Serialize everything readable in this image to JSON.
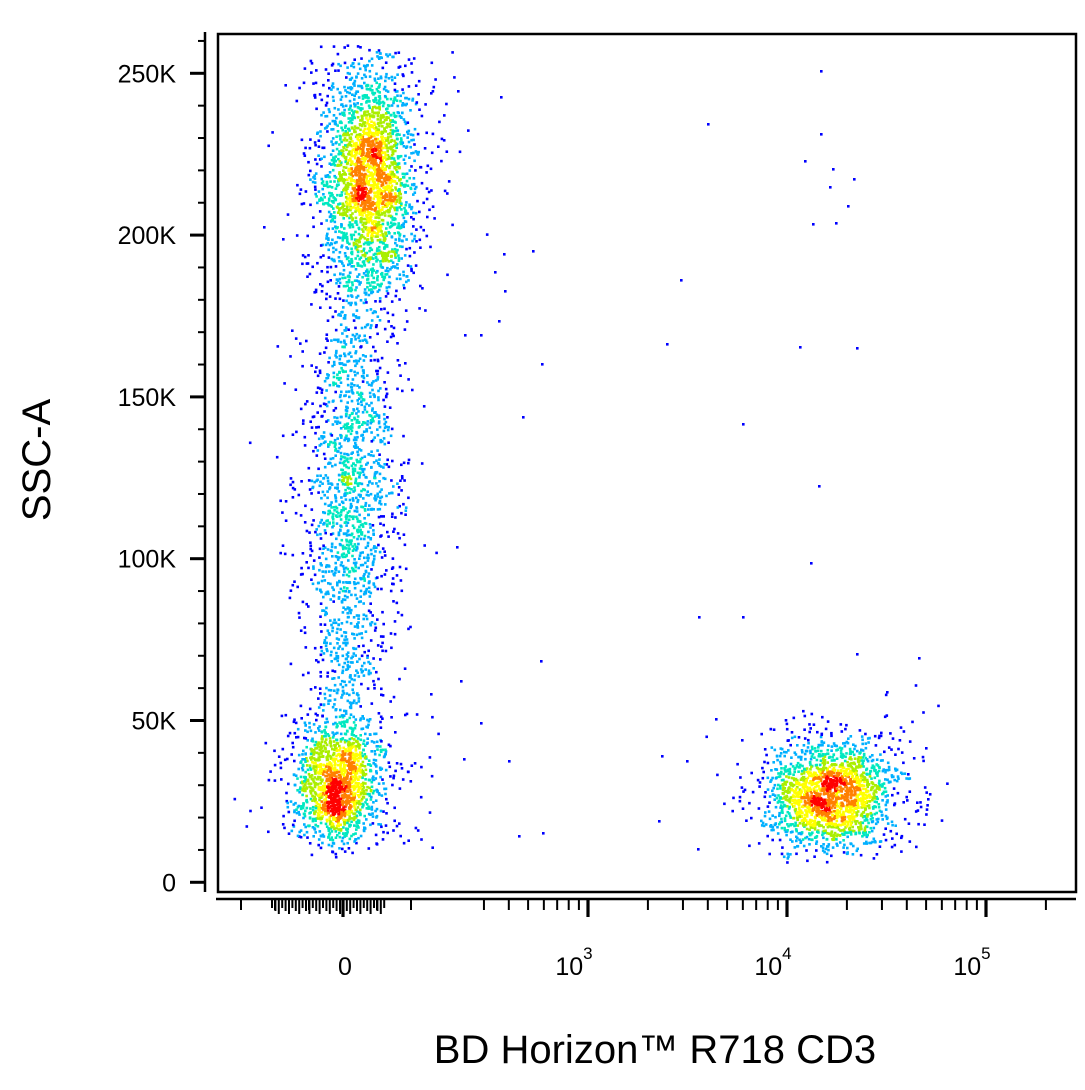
{
  "chart_data": {
    "type": "scatter",
    "subtype": "flow-cytometry density dot plot",
    "xlabel": "BD Horizon™ R718 CD3",
    "ylabel": "SSC-A",
    "x_scale": "biexponential",
    "y_scale": "linear",
    "xlim": [
      -600,
      200000
    ],
    "ylim": [
      -3000,
      262144
    ],
    "grid": false,
    "legend": "none",
    "colormap": [
      "#0000ff",
      "#00b0ff",
      "#00e8c0",
      "#aaee00",
      "#ffff00",
      "#ff8000",
      "#ff0000"
    ],
    "y_ticks": [
      {
        "value": 250000,
        "label": "250K"
      },
      {
        "value": 200000,
        "label": "200K"
      },
      {
        "value": 150000,
        "label": "150K"
      },
      {
        "value": 100000,
        "label": "100K"
      },
      {
        "value": 50000,
        "label": "50K"
      },
      {
        "value": 0,
        "label": "0"
      }
    ],
    "x_ticks": [
      {
        "value": 0,
        "base": "0",
        "exp": ""
      },
      {
        "value": 1000,
        "base": "10",
        "exp": "3"
      },
      {
        "value": 10000,
        "base": "10",
        "exp": "4"
      },
      {
        "value": 100000,
        "base": "10",
        "exp": "5"
      }
    ],
    "populations": [
      {
        "name": "",
        "x_center": 0,
        "y_center": 200000,
        "density": "high",
        "events": 2600
      },
      {
        "name": "",
        "x_center": 0,
        "y_center": 110000,
        "density": "medium",
        "events": 1500
      },
      {
        "name": "",
        "x_center": 0,
        "y_center": 35000,
        "density": "very high",
        "events": 1500
      },
      {
        "name": "",
        "x_center": 13000,
        "y_center": 30000,
        "density": "very high",
        "events": 1900
      }
    ]
  }
}
